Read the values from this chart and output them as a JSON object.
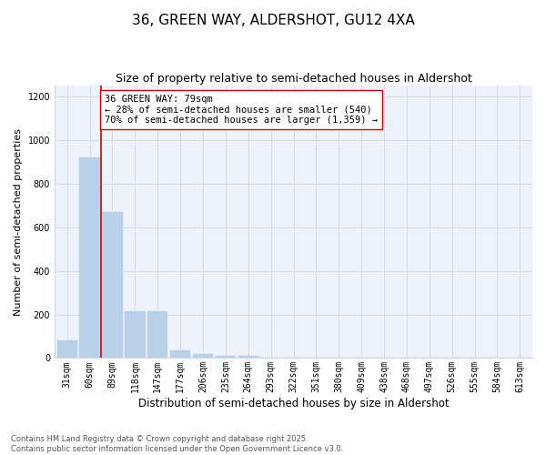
{
  "title": "36, GREEN WAY, ALDERSHOT, GU12 4XA",
  "subtitle": "Size of property relative to semi-detached houses in Aldershot",
  "xlabel": "Distribution of semi-detached houses by size in Aldershot",
  "ylabel": "Number of semi-detached properties",
  "categories": [
    "31sqm",
    "60sqm",
    "89sqm",
    "118sqm",
    "147sqm",
    "177sqm",
    "206sqm",
    "235sqm",
    "264sqm",
    "293sqm",
    "322sqm",
    "351sqm",
    "380sqm",
    "409sqm",
    "438sqm",
    "468sqm",
    "497sqm",
    "526sqm",
    "555sqm",
    "584sqm",
    "613sqm"
  ],
  "values": [
    80,
    920,
    670,
    215,
    215,
    35,
    20,
    12,
    12,
    0,
    0,
    0,
    0,
    0,
    0,
    0,
    0,
    0,
    0,
    0,
    0
  ],
  "bar_color": "#b8d0e8",
  "bar_edgecolor": "#b8d0e8",
  "grid_color": "#d0d8e8",
  "background_color": "#ffffff",
  "plot_bg_color": "#eef2fa",
  "vline_color": "#cc0000",
  "annotation_text": "36 GREEN WAY: 79sqm\n← 28% of semi-detached houses are smaller (540)\n70% of semi-detached houses are larger (1,359) →",
  "annotation_box_color": "#ffffff",
  "annotation_box_edgecolor": "#cc0000",
  "ylim": [
    0,
    1250
  ],
  "yticks": [
    0,
    200,
    400,
    600,
    800,
    1000,
    1200
  ],
  "footer_text": "Contains HM Land Registry data © Crown copyright and database right 2025.\nContains public sector information licensed under the Open Government Licence v3.0.",
  "title_fontsize": 11,
  "subtitle_fontsize": 9,
  "xlabel_fontsize": 8.5,
  "ylabel_fontsize": 8,
  "tick_fontsize": 7,
  "annotation_fontsize": 7.5,
  "footer_fontsize": 6
}
